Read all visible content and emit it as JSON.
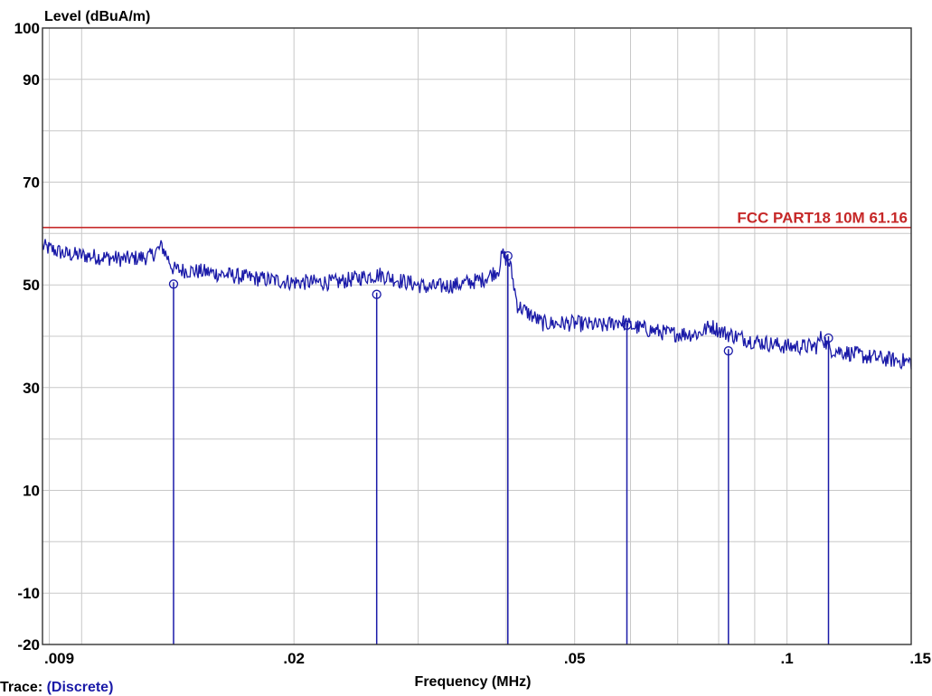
{
  "chart_data": {
    "type": "line",
    "ylabel": "Level (dBuA/m)",
    "xlabel": "Frequency (MHz)",
    "x_scale": "log",
    "xlim": [
      0.0088,
      0.15
    ],
    "ylim": [
      -20,
      100
    ],
    "x_ticks": [
      {
        "value": 0.009,
        "label": ".009"
      },
      {
        "value": 0.02,
        "label": ".02"
      },
      {
        "value": 0.05,
        "label": ".05"
      },
      {
        "value": 0.1,
        "label": ".1"
      },
      {
        "value": 0.15,
        "label": ".15"
      }
    ],
    "y_ticks": [
      {
        "value": 100,
        "label": "100"
      },
      {
        "value": 90,
        "label": "90"
      },
      {
        "value": 70,
        "label": "70"
      },
      {
        "value": 50,
        "label": "50"
      },
      {
        "value": 30,
        "label": "30"
      },
      {
        "value": 10,
        "label": "10"
      },
      {
        "value": -10,
        "label": "-10"
      },
      {
        "value": -20,
        "label": "-20"
      }
    ],
    "x_gridlines": [
      0.009,
      0.01,
      0.02,
      0.03,
      0.04,
      0.05,
      0.06,
      0.07,
      0.08,
      0.09,
      0.1,
      0.15
    ],
    "y_gridlines": [
      90,
      80,
      70,
      60,
      50,
      40,
      30,
      20,
      10,
      0,
      -10
    ],
    "grid": true,
    "limit_line": {
      "label": "FCC PART18 10M 61.16",
      "value": 61.16,
      "color": "#c62828"
    },
    "trace": {
      "color": "#1a1aa8",
      "points": [
        [
          0.0088,
          57.5
        ],
        [
          0.0095,
          56.0
        ],
        [
          0.0105,
          55.5
        ],
        [
          0.0115,
          55.0
        ],
        [
          0.0125,
          55.5
        ],
        [
          0.013,
          57.5
        ],
        [
          0.0135,
          53.0
        ],
        [
          0.015,
          52.5
        ],
        [
          0.017,
          51.5
        ],
        [
          0.02,
          50.5
        ],
        [
          0.023,
          50.5
        ],
        [
          0.025,
          51.5
        ],
        [
          0.0265,
          52.0
        ],
        [
          0.028,
          51.0
        ],
        [
          0.031,
          49.5
        ],
        [
          0.034,
          50.0
        ],
        [
          0.037,
          51.0
        ],
        [
          0.039,
          53.0
        ],
        [
          0.0395,
          56.0
        ],
        [
          0.0405,
          54.0
        ],
        [
          0.0415,
          46.0
        ],
        [
          0.045,
          42.5
        ],
        [
          0.05,
          42.5
        ],
        [
          0.055,
          42.0
        ],
        [
          0.058,
          43.0
        ],
        [
          0.06,
          42.0
        ],
        [
          0.068,
          40.5
        ],
        [
          0.075,
          40.5
        ],
        [
          0.078,
          42.0
        ],
        [
          0.082,
          40.5
        ],
        [
          0.09,
          39.0
        ],
        [
          0.1,
          38.0
        ],
        [
          0.11,
          38.0
        ],
        [
          0.112,
          40.0
        ],
        [
          0.115,
          37.5
        ],
        [
          0.13,
          36.0
        ],
        [
          0.15,
          35.0
        ]
      ]
    },
    "markers": [
      {
        "x": 0.0135,
        "y": 50.5
      },
      {
        "x": 0.0262,
        "y": 48.5
      },
      {
        "x": 0.0402,
        "y": 56.0
      },
      {
        "x": 0.0593,
        "y": 42.5
      },
      {
        "x": 0.0826,
        "y": 37.5
      },
      {
        "x": 0.1145,
        "y": 40.0
      }
    ]
  },
  "footer": {
    "trace_label": "Trace:",
    "trace_value": "(Discrete)"
  }
}
